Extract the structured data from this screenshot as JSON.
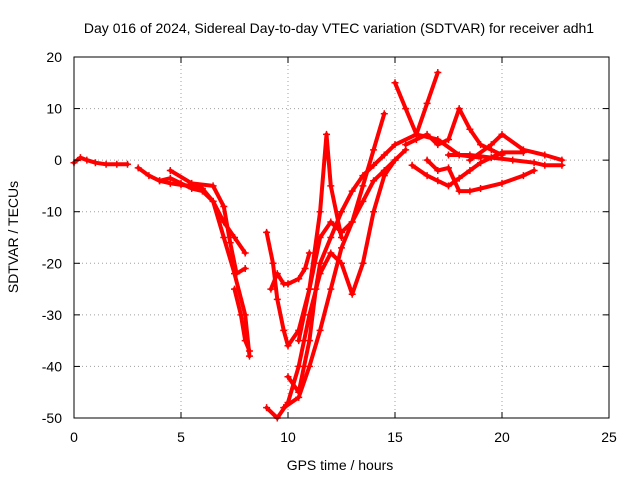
{
  "chart_data": {
    "type": "scatter",
    "title": "Day 016 of 2024, Sidereal Day-to-day VTEC variation (SDTVAR) for receiver adh1",
    "xlabel": "GPS time / hours",
    "ylabel": "SDTVAR / TECUs",
    "xlim": [
      0,
      25
    ],
    "ylim": [
      -50,
      20
    ],
    "xticks": [
      0,
      5,
      10,
      15,
      20,
      25
    ],
    "yticks": [
      -50,
      -40,
      -30,
      -20,
      -10,
      0,
      10,
      20
    ],
    "xtick_labels": [
      "0",
      "5",
      "10",
      "15",
      "20",
      "25"
    ],
    "ytick_labels": [
      "-50",
      "-40",
      "-30",
      "-20",
      "-10",
      "0",
      "10",
      "20"
    ],
    "grid": true,
    "marker": "plus",
    "color": "#ff0000",
    "series": [
      {
        "x": [
          0.0,
          0.3,
          0.6,
          1.0,
          1.5,
          2.0,
          2.5
        ],
        "y": [
          -0.5,
          0.5,
          0.0,
          -0.5,
          -0.8,
          -0.8,
          -0.8
        ]
      },
      {
        "x": [
          3.0,
          3.5,
          4.0,
          4.5,
          5.0,
          5.5,
          6.0,
          6.5,
          7.0,
          7.5,
          8.0
        ],
        "y": [
          -1.5,
          -3.0,
          -4.0,
          -4.5,
          -4.8,
          -5.0,
          -5.5,
          -8.0,
          -12.0,
          -15.0,
          -18.0
        ]
      },
      {
        "x": [
          4.0,
          4.5,
          5.0,
          5.5,
          6.0,
          6.5,
          7.0,
          7.5,
          8.0,
          8.2
        ],
        "y": [
          -4.0,
          -3.5,
          -4.5,
          -5.5,
          -6.0,
          -8.0,
          -15.0,
          -22.0,
          -30.0,
          -38.0
        ]
      },
      {
        "x": [
          4.5,
          5.5,
          6.5,
          7.0,
          7.3,
          7.6,
          8.0
        ],
        "y": [
          -2.0,
          -4.5,
          -5.0,
          -9.0,
          -16.0,
          -22.0,
          -21.0
        ]
      },
      {
        "x": [
          7.5,
          7.8,
          8.0,
          8.2
        ],
        "y": [
          -25.0,
          -30.0,
          -35.0,
          -37.0
        ]
      },
      {
        "x": [
          9.0,
          9.3,
          9.5,
          9.8,
          10.0,
          10.5,
          11.0,
          11.5,
          12.0,
          12.5,
          13.0,
          13.5,
          14.0,
          14.5
        ],
        "y": [
          -14.0,
          -20.0,
          -27.0,
          -33.0,
          -36.0,
          -33.0,
          -25.0,
          -15.0,
          -12.0,
          -14.0,
          -12.0,
          -5.0,
          2.0,
          9.0
        ]
      },
      {
        "x": [
          9.0,
          9.5,
          10.0,
          10.5,
          11.0,
          11.5,
          12.0,
          12.5,
          13.0,
          13.5,
          14.0,
          14.5,
          15.0
        ],
        "y": [
          -48.0,
          -50.0,
          -47.0,
          -40.0,
          -30.0,
          -22.0,
          -18.0,
          -20.0,
          -26.0,
          -20.0,
          -10.0,
          -3.0,
          0.0
        ]
      },
      {
        "x": [
          9.2,
          9.5,
          9.8,
          10.0
        ],
        "y": [
          -25.0,
          -22.0,
          -24.0,
          -24.0
        ]
      },
      {
        "x": [
          10.0,
          10.5,
          10.8,
          11.0
        ],
        "y": [
          -24.0,
          -23.0,
          -21.0,
          -18.0
        ]
      },
      {
        "x": [
          10.5,
          11.0,
          11.5,
          11.8,
          12.0,
          12.5
        ],
        "y": [
          -35.0,
          -25.0,
          -10.0,
          5.0,
          -5.0,
          -15.0
        ]
      },
      {
        "x": [
          10.0,
          10.5,
          11.0,
          11.3,
          11.5,
          12.0,
          12.5,
          13.0,
          13.5,
          14.0,
          14.5,
          15.0,
          16.0,
          17.0,
          18.0,
          19.0
        ],
        "y": [
          -42.0,
          -45.0,
          -35.0,
          -25.0,
          -20.0,
          -15.0,
          -10.0,
          -6.0,
          -3.0,
          -1.0,
          1.0,
          3.0,
          5.0,
          4.0,
          1.0,
          0.5
        ]
      },
      {
        "x": [
          9.8,
          10.5,
          11.0,
          11.5,
          12.0,
          12.5,
          13.0,
          13.5,
          14.0,
          14.5,
          15.0,
          15.5
        ],
        "y": [
          -48.0,
          -46.0,
          -40.0,
          -33.0,
          -25.0,
          -17.0,
          -12.0,
          -8.0,
          -4.0,
          -2.0,
          0.0,
          2.0
        ]
      },
      {
        "x": [
          15.0,
          15.5,
          16.0,
          16.5,
          17.0
        ],
        "y": [
          15.0,
          10.0,
          5.0,
          11.0,
          17.0
        ]
      },
      {
        "x": [
          15.5,
          16.0,
          16.5,
          17.0,
          17.5,
          18.0,
          18.5,
          19.0,
          19.5,
          20.0
        ],
        "y": [
          3.0,
          4.0,
          5.0,
          3.0,
          4.0,
          10.0,
          6.0,
          3.0,
          2.0,
          1.0
        ]
      },
      {
        "x": [
          15.8,
          16.5,
          17.0,
          17.5,
          18.0,
          18.5,
          19.0,
          20.0,
          21.0
        ],
        "y": [
          -1.0,
          -3.0,
          -4.0,
          -5.0,
          -3.5,
          -2.0,
          -0.5,
          1.5,
          1.5
        ]
      },
      {
        "x": [
          16.5,
          17.0,
          17.5,
          18.0,
          18.5,
          19.0,
          20.0,
          21.0,
          21.5
        ],
        "y": [
          0.0,
          -2.0,
          -1.5,
          -6.0,
          -6.0,
          -5.5,
          -4.5,
          -3.0,
          -2.0
        ]
      },
      {
        "x": [
          17.5,
          18.5,
          19.5,
          20.5,
          21.5,
          22.0,
          22.8
        ],
        "y": [
          1.0,
          1.0,
          0.5,
          0.0,
          -0.5,
          -1.0,
          -1.0
        ]
      },
      {
        "x": [
          18.5,
          19.5,
          20.0,
          21.0,
          22.0,
          22.8
        ],
        "y": [
          0.0,
          3.0,
          5.0,
          2.0,
          1.0,
          0.0
        ]
      }
    ]
  }
}
